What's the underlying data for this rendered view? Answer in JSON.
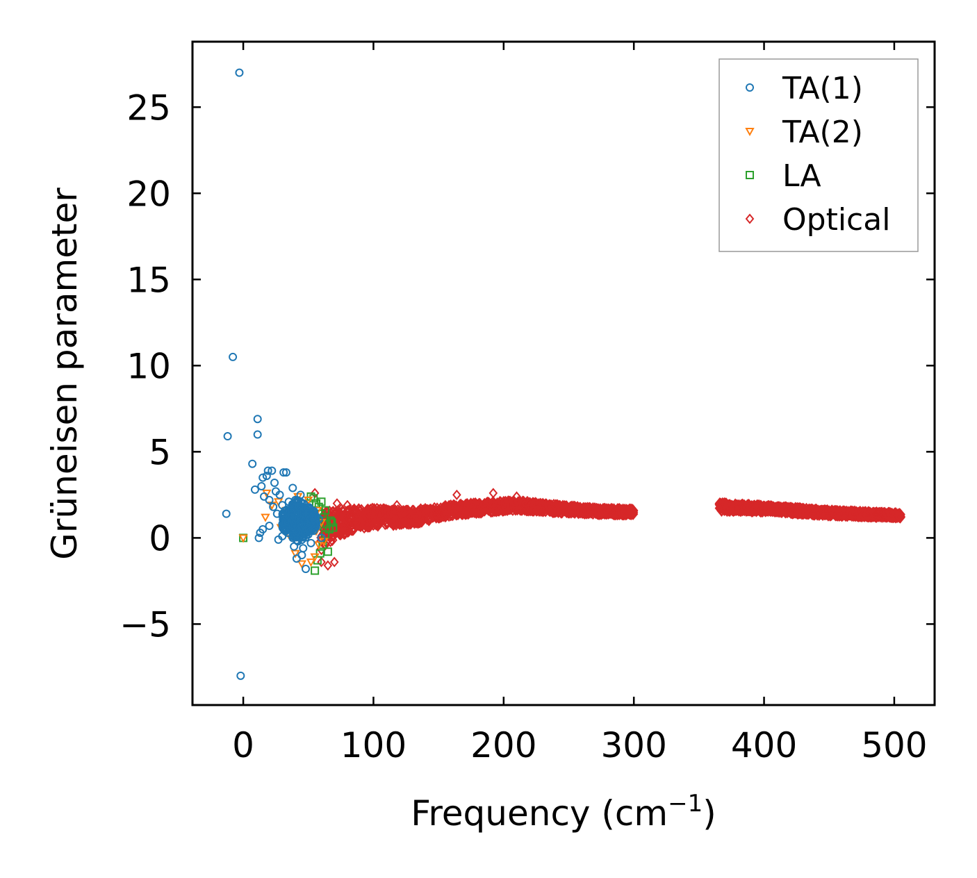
{
  "chart_data": {
    "type": "scatter",
    "title": "",
    "xlabel": "Frequency (cm",
    "xlabel_sup": "−1",
    "xlabel_close": ")",
    "ylabel": "Grüneisen parameter",
    "xlim": [
      -39,
      531
    ],
    "ylim": [
      -9.7,
      28.8
    ],
    "x_ticks": [
      0,
      100,
      200,
      300,
      400,
      500
    ],
    "x_tick_labels": [
      "0",
      "100",
      "200",
      "300",
      "400",
      "500"
    ],
    "y_ticks": [
      -5,
      0,
      5,
      10,
      15,
      20,
      25
    ],
    "y_tick_labels": [
      "−5",
      "0",
      "5",
      "10",
      "15",
      "20",
      "25"
    ],
    "grid": false,
    "legend_position": "top-right",
    "series": [
      {
        "name": "TA(1)",
        "marker": "circle",
        "color": "#1f77b4",
        "points": [
          [
            -3,
            27.0
          ],
          [
            -8,
            10.5
          ],
          [
            -12,
            5.9
          ],
          [
            -2,
            -8.0
          ],
          [
            -13,
            1.4
          ],
          [
            11,
            6.9
          ],
          [
            11,
            6.0
          ],
          [
            7,
            4.3
          ],
          [
            9,
            2.8
          ],
          [
            14,
            3.0
          ],
          [
            15,
            3.5
          ],
          [
            18,
            3.6
          ],
          [
            19,
            3.9
          ],
          [
            22,
            3.9
          ],
          [
            24,
            3.2
          ],
          [
            31,
            3.8
          ],
          [
            33,
            3.8
          ],
          [
            16,
            2.4
          ],
          [
            20,
            2.2
          ],
          [
            25,
            2.7
          ],
          [
            28,
            2.5
          ],
          [
            30,
            1.9
          ],
          [
            35,
            2.1
          ],
          [
            38,
            2.9
          ],
          [
            40,
            2.2
          ],
          [
            45,
            2.0
          ],
          [
            26,
            1.4
          ],
          [
            32,
            1.1
          ],
          [
            36,
            0.8
          ],
          [
            40,
            0.4
          ],
          [
            44,
            0.9
          ],
          [
            48,
            1.3
          ],
          [
            50,
            0.2
          ],
          [
            52,
            -0.3
          ],
          [
            46,
            -0.6
          ],
          [
            42,
            -0.2
          ],
          [
            38,
            0.0
          ],
          [
            34,
            0.3
          ],
          [
            30,
            0.1
          ],
          [
            27,
            -0.1
          ],
          [
            12,
            0.0
          ],
          [
            13,
            0.3
          ],
          [
            15,
            0.5
          ],
          [
            20,
            0.7
          ],
          [
            23,
            1.8
          ],
          [
            41,
            -1.2
          ],
          [
            48,
            -1.8
          ],
          [
            45,
            -1.0
          ],
          [
            55,
            0.6
          ],
          [
            58,
            1.1
          ],
          [
            60,
            0.0
          ],
          [
            37,
            1.5
          ],
          [
            43,
            1.6
          ],
          [
            49,
            0.6
          ],
          [
            53,
            1.4
          ],
          [
            39,
            -0.5
          ],
          [
            47,
            0.2
          ],
          [
            44,
            2.5
          ]
        ]
      },
      {
        "name": "TA(2)",
        "marker": "triangle-down",
        "color": "#ff7f0e",
        "points": [
          [
            0,
            0.0
          ],
          [
            17,
            1.2
          ],
          [
            18,
            2.6
          ],
          [
            22,
            1.9
          ],
          [
            27,
            2.1
          ],
          [
            33,
            1.6
          ],
          [
            38,
            1.0
          ],
          [
            42,
            2.4
          ],
          [
            47,
            1.8
          ],
          [
            50,
            2.2
          ],
          [
            53,
            1.0
          ],
          [
            56,
            0.4
          ],
          [
            58,
            -0.4
          ],
          [
            55,
            -1.1
          ],
          [
            52,
            -1.4
          ],
          [
            45,
            -1.5
          ],
          [
            40,
            -0.9
          ],
          [
            60,
            0.9
          ],
          [
            57,
            1.6
          ],
          [
            35,
            0.2
          ],
          [
            29,
            0.6
          ],
          [
            62,
            -0.2
          ]
        ]
      },
      {
        "name": "LA",
        "marker": "square",
        "color": "#2ca02c",
        "points": [
          [
            0,
            0.0
          ],
          [
            55,
            -1.9
          ],
          [
            54,
            2.3
          ],
          [
            58,
            1.8
          ],
          [
            60,
            1.4
          ],
          [
            62,
            1.2
          ],
          [
            64,
            0.8
          ],
          [
            66,
            0.5
          ],
          [
            68,
            0.9
          ],
          [
            63,
            0.2
          ],
          [
            61,
            -0.4
          ],
          [
            59,
            -0.9
          ],
          [
            57,
            -1.3
          ],
          [
            65,
            -0.8
          ],
          [
            52,
            2.4
          ],
          [
            56,
            2.0
          ],
          [
            60,
            2.1
          ],
          [
            63,
            1.6
          ],
          [
            67,
            1.0
          ],
          [
            69,
            0.6
          ],
          [
            57,
            0.7
          ],
          [
            55,
            1.1
          ]
        ]
      },
      {
        "name": "Optical",
        "marker": "diamond",
        "color": "#d62728",
        "band": {
          "segments": [
            {
              "x_from": 60,
              "x_to": 300,
              "step": 0.7
            },
            {
              "x_from": 366,
              "x_to": 505,
              "step": 0.7
            }
          ],
          "centerline": [
            [
              60,
              0.5
            ],
            [
              80,
              1.0
            ],
            [
              100,
              1.2
            ],
            [
              130,
              1.2
            ],
            [
              160,
              1.6
            ],
            [
              190,
              1.8
            ],
            [
              210,
              1.9
            ],
            [
              240,
              1.7
            ],
            [
              270,
              1.55
            ],
            [
              300,
              1.5
            ],
            [
              366,
              1.8
            ],
            [
              400,
              1.7
            ],
            [
              450,
              1.45
            ],
            [
              505,
              1.3
            ]
          ],
          "spread": [
            [
              60,
              2.3
            ],
            [
              70,
              1.8
            ],
            [
              80,
              1.3
            ],
            [
              100,
              1.0
            ],
            [
              130,
              0.8
            ],
            [
              160,
              0.6
            ],
            [
              190,
              0.55
            ],
            [
              220,
              0.5
            ],
            [
              260,
              0.35
            ],
            [
              300,
              0.3
            ],
            [
              366,
              0.45
            ],
            [
              400,
              0.35
            ],
            [
              450,
              0.3
            ],
            [
              505,
              0.25
            ]
          ]
        },
        "points": [
          [
            55,
            2.6
          ],
          [
            60,
            -1.4
          ],
          [
            65,
            -1.6
          ],
          [
            70,
            -1.4
          ],
          [
            164,
            2.5
          ],
          [
            192,
            2.6
          ],
          [
            118,
            1.9
          ],
          [
            210,
            2.4
          ],
          [
            80,
            1.9
          ],
          [
            72,
            2.0
          ]
        ]
      }
    ]
  }
}
